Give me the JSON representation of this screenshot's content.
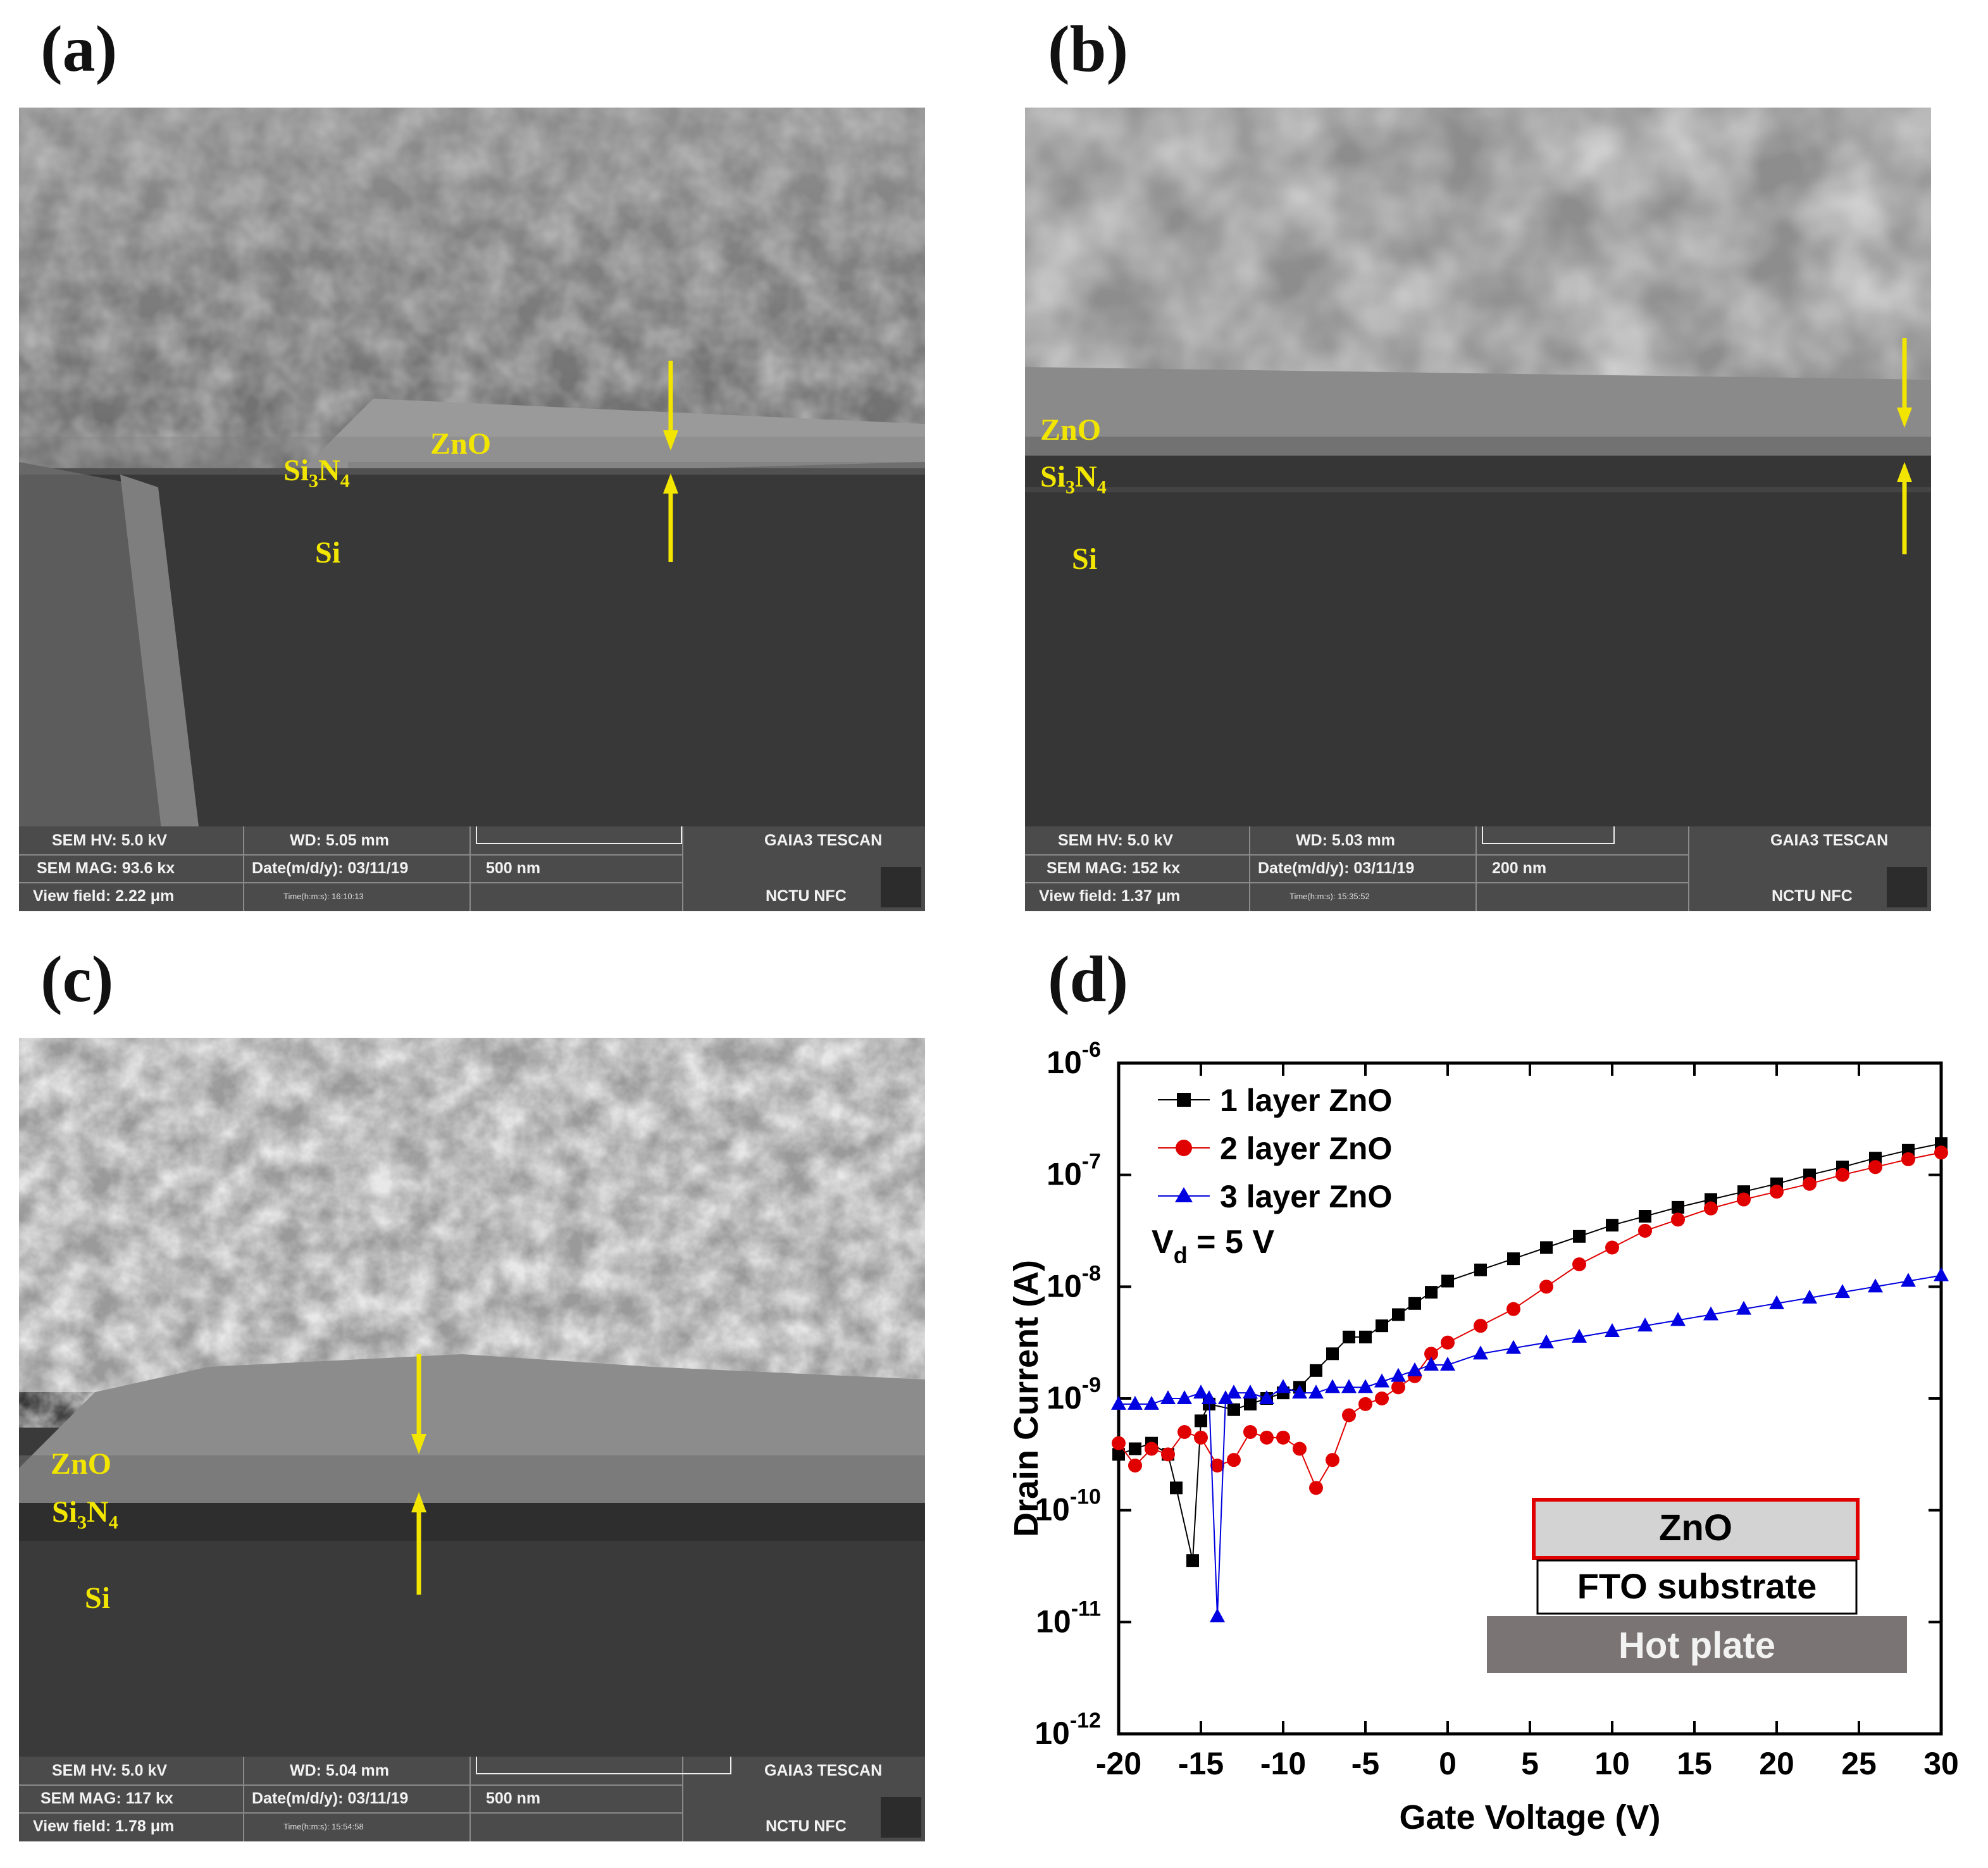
{
  "panels": {
    "a": {
      "label": "(a)",
      "layers": {
        "zno": "ZnO",
        "si3n4_main": "Si",
        "si3n4_sub1": "3",
        "si3n4_n": "N",
        "si3n4_sub2": "4",
        "si": "Si"
      },
      "info": {
        "hv": "SEM HV: 5.0 kV",
        "wd": "WD: 5.05 mm",
        "vendor": "GAIA3 TESCAN",
        "mag": "SEM MAG: 93.6 kx",
        "date": "Date(m/d/y): 03/11/19",
        "scale": "500 nm",
        "view": "View field: 2.22 μm",
        "time": "Time(h:m:s): 16:10:13",
        "lab": "NCTU NFC"
      }
    },
    "b": {
      "label": "(b)",
      "layers": {
        "zno": "ZnO",
        "si3n4_main": "Si",
        "si3n4_sub1": "3",
        "si3n4_n": "N",
        "si3n4_sub2": "4",
        "si": "Si"
      },
      "info": {
        "hv": "SEM HV: 5.0 kV",
        "wd": "WD: 5.03 mm",
        "vendor": "GAIA3 TESCAN",
        "mag": "SEM MAG: 152 kx",
        "date": "Date(m/d/y): 03/11/19",
        "scale": "200 nm",
        "view": "View field: 1.37 μm",
        "time": "Time(h:m:s): 15:35:52",
        "lab": "NCTU NFC"
      }
    },
    "c": {
      "label": "(c)",
      "layers": {
        "zno": "ZnO",
        "si3n4_main": "Si",
        "si3n4_sub1": "3",
        "si3n4_n": "N",
        "si3n4_sub2": "4",
        "si": "Si"
      },
      "info": {
        "hv": "SEM HV: 5.0 kV",
        "wd": "WD: 5.04 mm",
        "vendor": "GAIA3 TESCAN",
        "mag": "SEM MAG: 117 kx",
        "date": "Date(m/d/y): 03/11/19",
        "scale": "500 nm",
        "view": "View field: 1.78 μm",
        "time": "Time(h:m:s): 15:54:58",
        "lab": "NCTU NFC"
      }
    },
    "d": {
      "label": "(d)",
      "annotation": "V",
      "annotation_sub": "d",
      "annotation_rest": " = 5 V",
      "inset": {
        "top": "ZnO",
        "middle": "FTO substrate",
        "bottom": "Hot plate"
      }
    }
  },
  "colors": {
    "arrow": "#f2e600",
    "s1": "#000000",
    "s2": "#e00000",
    "s3": "#0000e0",
    "inset_border": "#e00000",
    "hotplate": "#7a7474"
  },
  "chart_data": {
    "type": "scatter",
    "xlabel": "Gate Voltage (V)",
    "ylabel": "Drain Current (A)",
    "xlim": [
      -20,
      30
    ],
    "ylim_log10": [
      -12,
      -6
    ],
    "yscale": "log",
    "xticks": [
      "-20",
      "-15",
      "-10",
      "-5",
      "0",
      "5",
      "10",
      "15",
      "20",
      "25",
      "30"
    ],
    "yticks": [
      {
        "base": "10",
        "exp": "-6"
      },
      {
        "base": "10",
        "exp": "-7"
      },
      {
        "base": "10",
        "exp": "-8"
      },
      {
        "base": "10",
        "exp": "-9"
      },
      {
        "base": "10",
        "exp": "-10"
      },
      {
        "base": "10",
        "exp": "-11"
      },
      {
        "base": "10",
        "exp": "-12"
      }
    ],
    "legend_position": "top-left",
    "series": [
      {
        "name": "1 layer ZnO",
        "marker": "square",
        "x": [
          -20,
          -19,
          -18,
          -17,
          -16.5,
          -15.5,
          -15,
          -14.5,
          -13,
          -12,
          -11,
          -10,
          -9,
          -8,
          -7,
          -6,
          -5,
          -4,
          -3,
          -2,
          -1,
          0,
          2,
          4,
          6,
          8,
          10,
          12,
          14,
          16,
          18,
          20,
          22,
          24,
          26,
          28,
          30
        ],
        "log10_y": [
          -9.5,
          -9.45,
          -9.4,
          -9.5,
          -9.8,
          -10.45,
          -9.2,
          -9.05,
          -9.1,
          -9.05,
          -9.0,
          -8.95,
          -8.9,
          -8.75,
          -8.6,
          -8.45,
          -8.45,
          -8.35,
          -8.25,
          -8.15,
          -8.05,
          -7.95,
          -7.85,
          -7.75,
          -7.65,
          -7.55,
          -7.45,
          -7.37,
          -7.29,
          -7.22,
          -7.15,
          -7.08,
          -7.0,
          -6.93,
          -6.85,
          -6.78,
          -6.72
        ]
      },
      {
        "name": "2 layer ZnO",
        "marker": "circle",
        "x": [
          -20,
          -19,
          -18,
          -17,
          -16,
          -15,
          -14,
          -13,
          -12,
          -11,
          -10,
          -9,
          -8,
          -7,
          -6,
          -5,
          -4,
          -3,
          -2,
          -1,
          0,
          2,
          4,
          6,
          8,
          10,
          12,
          14,
          16,
          18,
          20,
          22,
          24,
          26,
          28,
          30
        ],
        "log10_y": [
          -9.4,
          -9.6,
          -9.45,
          -9.5,
          -9.3,
          -9.35,
          -9.6,
          -9.55,
          -9.3,
          -9.35,
          -9.35,
          -9.45,
          -9.8,
          -9.55,
          -9.15,
          -9.05,
          -9.0,
          -8.9,
          -8.8,
          -8.6,
          -8.5,
          -8.35,
          -8.2,
          -8.0,
          -7.8,
          -7.65,
          -7.5,
          -7.4,
          -7.3,
          -7.22,
          -7.15,
          -7.08,
          -7.0,
          -6.93,
          -6.86,
          -6.8
        ]
      },
      {
        "name": "3 layer ZnO",
        "marker": "triangle",
        "x": [
          -20,
          -19,
          -18,
          -17,
          -16,
          -15,
          -14.5,
          -14,
          -13.5,
          -13,
          -12,
          -11,
          -10,
          -9,
          -8,
          -7,
          -6,
          -5,
          -4,
          -3,
          -2,
          -1,
          0,
          2,
          4,
          6,
          8,
          10,
          12,
          14,
          16,
          18,
          20,
          22,
          24,
          26,
          28,
          30
        ],
        "log10_y": [
          -9.05,
          -9.05,
          -9.05,
          -9.0,
          -9.0,
          -8.95,
          -9.0,
          -10.95,
          -9.0,
          -8.95,
          -8.95,
          -9.0,
          -8.9,
          -8.95,
          -8.95,
          -8.9,
          -8.9,
          -8.9,
          -8.85,
          -8.8,
          -8.75,
          -8.7,
          -8.7,
          -8.6,
          -8.55,
          -8.5,
          -8.45,
          -8.4,
          -8.35,
          -8.3,
          -8.25,
          -8.2,
          -8.15,
          -8.1,
          -8.05,
          -8.0,
          -7.95,
          -7.9
        ]
      }
    ]
  }
}
